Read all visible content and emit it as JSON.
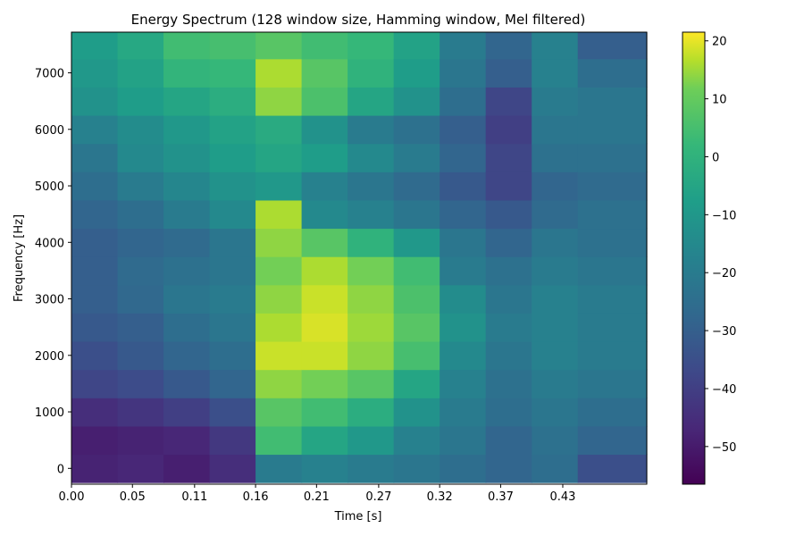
{
  "chart_data": {
    "type": "heatmap",
    "title": "Energy Spectrum (128 window size, Hamming window, Mel filtered)",
    "xlabel": "Time [s]",
    "ylabel": "Frequency [Hz]",
    "xlim": [
      0.0,
      0.5
    ],
    "ylim": [
      -280,
      7720
    ],
    "x_ticks": [
      "0.00",
      "0.05",
      "0.11",
      "0.16",
      "0.21",
      "0.27",
      "0.32",
      "0.37",
      "0.43"
    ],
    "x_tick_values": [
      0.0,
      0.053,
      0.107,
      0.16,
      0.213,
      0.267,
      0.32,
      0.373,
      0.427
    ],
    "y_ticks": [
      "0",
      "1000",
      "2000",
      "3000",
      "4000",
      "5000",
      "6000",
      "7000"
    ],
    "y_tick_values": [
      0,
      1000,
      2000,
      3000,
      4000,
      5000,
      6000,
      7000
    ],
    "colormap": "viridis",
    "colorbar": {
      "range": [
        -56.5,
        21.5
      ],
      "ticks": [
        "20",
        "10",
        "0",
        "−10",
        "−20",
        "−30",
        "−40",
        "−50"
      ],
      "tick_values": [
        20,
        10,
        0,
        -10,
        -20,
        -30,
        -40,
        -50
      ]
    },
    "rows_frequency_hz": [
      0,
      500,
      1000,
      1500,
      2000,
      2500,
      3000,
      3500,
      4000,
      4500,
      5000,
      5500,
      6000,
      6500,
      7000,
      7500
    ],
    "time_segments": [
      {
        "t_start": 0.0,
        "t_end": 0.04,
        "values_db": [
          -48,
          -49,
          -45,
          -38,
          -35,
          -32,
          -30,
          -30,
          -30,
          -28,
          -25,
          -22,
          -18,
          -12,
          -10,
          -8
        ]
      },
      {
        "t_start": 0.04,
        "t_end": 0.08,
        "values_db": [
          -47,
          -48,
          -43,
          -36,
          -32,
          -30,
          -27,
          -26,
          -28,
          -25,
          -20,
          -15,
          -14,
          -8,
          -6,
          -4
        ]
      },
      {
        "t_start": 0.08,
        "t_end": 0.12,
        "values_db": [
          -49,
          -47,
          -40,
          -32,
          -28,
          -25,
          -22,
          -24,
          -26,
          -20,
          -16,
          -12,
          -10,
          -5,
          1,
          4
        ]
      },
      {
        "t_start": 0.12,
        "t_end": 0.16,
        "values_db": [
          -45,
          -42,
          -35,
          -28,
          -25,
          -22,
          -20,
          -22,
          -22,
          -15,
          -12,
          -8,
          -6,
          -2,
          2,
          5
        ]
      },
      {
        "t_start": 0.16,
        "t_end": 0.2,
        "values_db": [
          -20,
          4,
          8,
          14,
          18,
          16,
          14,
          12,
          14,
          16,
          -10,
          -5,
          -3,
          14,
          16,
          8
        ]
      },
      {
        "t_start": 0.2,
        "t_end": 0.24,
        "values_db": [
          -18,
          -5,
          4,
          12,
          18,
          19,
          18,
          16,
          8,
          -15,
          -18,
          -8,
          -12,
          6,
          8,
          4
        ]
      },
      {
        "t_start": 0.24,
        "t_end": 0.28,
        "values_db": [
          -20,
          -10,
          -2,
          8,
          14,
          15,
          14,
          12,
          0,
          -18,
          -22,
          -15,
          -20,
          -5,
          0,
          2
        ]
      },
      {
        "t_start": 0.28,
        "t_end": 0.32,
        "values_db": [
          -22,
          -18,
          -12,
          -5,
          5,
          8,
          6,
          4,
          -10,
          -22,
          -26,
          -20,
          -24,
          -12,
          -8,
          -6
        ]
      },
      {
        "t_start": 0.32,
        "t_end": 0.36,
        "values_db": [
          -25,
          -22,
          -20,
          -18,
          -15,
          -12,
          -14,
          -20,
          -22,
          -28,
          -32,
          -28,
          -30,
          -25,
          -22,
          -20
        ]
      },
      {
        "t_start": 0.36,
        "t_end": 0.4,
        "values_db": [
          -28,
          -28,
          -25,
          -24,
          -22,
          -20,
          -22,
          -24,
          -28,
          -32,
          -38,
          -38,
          -40,
          -38,
          -30,
          -28
        ]
      },
      {
        "t_start": 0.4,
        "t_end": 0.44,
        "values_db": [
          -25,
          -24,
          -22,
          -20,
          -18,
          -18,
          -18,
          -20,
          -22,
          -26,
          -28,
          -24,
          -22,
          -20,
          -18,
          -18
        ]
      },
      {
        "t_start": 0.44,
        "t_end": 0.5,
        "values_db": [
          -35,
          -28,
          -25,
          -22,
          -20,
          -20,
          -20,
          -22,
          -24,
          -24,
          -26,
          -24,
          -22,
          -22,
          -25,
          -30
        ]
      }
    ]
  }
}
